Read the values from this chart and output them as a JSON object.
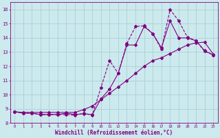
{
  "xlabel": "Windchill (Refroidissement éolien,°C)",
  "background_color": "#cce9ed",
  "grid_color": "#aad0d6",
  "line_color": "#800080",
  "xlim": [
    -0.5,
    23.5
  ],
  "ylim": [
    8,
    16.5
  ],
  "yticks": [
    8,
    9,
    10,
    11,
    12,
    13,
    14,
    15,
    16
  ],
  "xticks": [
    0,
    1,
    2,
    3,
    4,
    5,
    6,
    7,
    8,
    9,
    10,
    11,
    12,
    13,
    14,
    15,
    16,
    17,
    18,
    19,
    20,
    21,
    22,
    23
  ],
  "series1_x": [
    0,
    1,
    2,
    3,
    4,
    5,
    6,
    7,
    8,
    9,
    10,
    11,
    12,
    13,
    14,
    15,
    16,
    17,
    18,
    19,
    20,
    21,
    22,
    23
  ],
  "series1_y": [
    8.8,
    8.7,
    8.7,
    8.6,
    8.6,
    8.6,
    8.7,
    8.6,
    8.65,
    8.6,
    9.7,
    10.4,
    11.5,
    13.5,
    13.5,
    14.8,
    14.3,
    13.3,
    15.2,
    14.0,
    14.0,
    13.8,
    13.1,
    12.8
  ],
  "series2_x": [
    0,
    1,
    2,
    3,
    4,
    5,
    6,
    7,
    8,
    9,
    10,
    11,
    12,
    13,
    14,
    15,
    16,
    17,
    18,
    19,
    20,
    21,
    22,
    23
  ],
  "series2_y": [
    8.8,
    8.7,
    8.7,
    8.6,
    8.6,
    8.6,
    8.6,
    8.55,
    8.7,
    8.55,
    10.5,
    12.4,
    11.5,
    13.6,
    14.8,
    14.85,
    14.3,
    13.2,
    16.0,
    15.2,
    14.05,
    13.8,
    13.05,
    12.8
  ],
  "series3_x": [
    0,
    1,
    2,
    3,
    4,
    5,
    6,
    7,
    8,
    9,
    10,
    11,
    12,
    13,
    14,
    15,
    16,
    17,
    18,
    19,
    20,
    21,
    22,
    23
  ],
  "series3_y": [
    8.8,
    8.75,
    8.75,
    8.75,
    8.75,
    8.75,
    8.75,
    8.75,
    8.95,
    9.2,
    9.65,
    10.1,
    10.55,
    11.0,
    11.5,
    12.0,
    12.4,
    12.6,
    12.9,
    13.2,
    13.5,
    13.65,
    13.7,
    12.85
  ]
}
